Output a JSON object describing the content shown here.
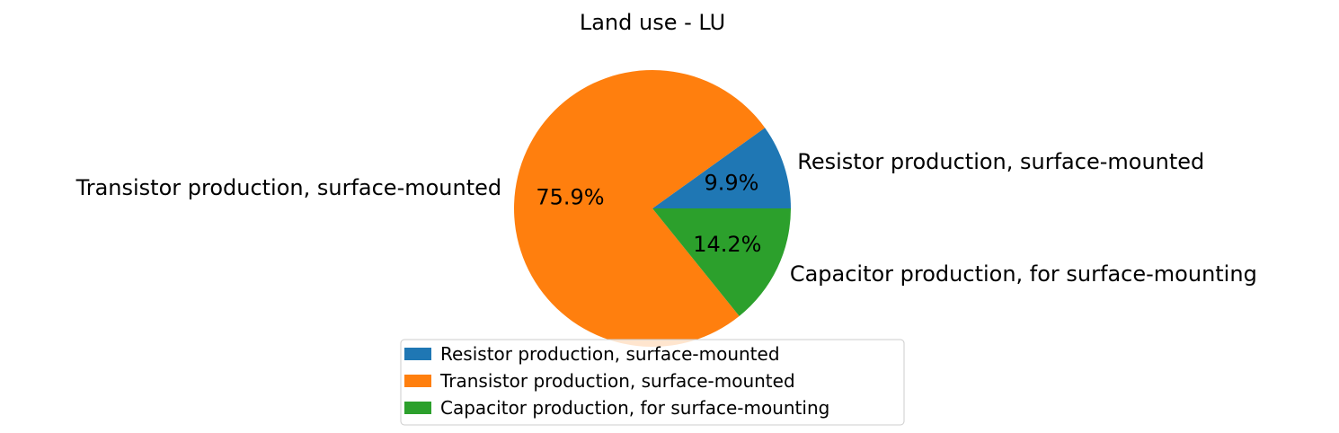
{
  "chart_data": {
    "type": "pie",
    "title": "Land use - LU",
    "categories": [
      "Resistor production, surface-mounted",
      "Transistor production, surface-mounted",
      "Capacitor production, for surface-mounting"
    ],
    "values": [
      9.9,
      75.9,
      14.2
    ],
    "value_labels": [
      "9.9%",
      "75.9%",
      "14.2%"
    ],
    "colors": [
      "#1f77b4",
      "#ff7f0e",
      "#2ca02c"
    ],
    "start_angle_deg": 0,
    "direction": "counterclockwise",
    "legend": {
      "position": "bottom-center",
      "entries": [
        "Resistor production, surface-mounted",
        "Transistor production, surface-mounted",
        "Capacitor production, for surface-mounting"
      ]
    }
  }
}
